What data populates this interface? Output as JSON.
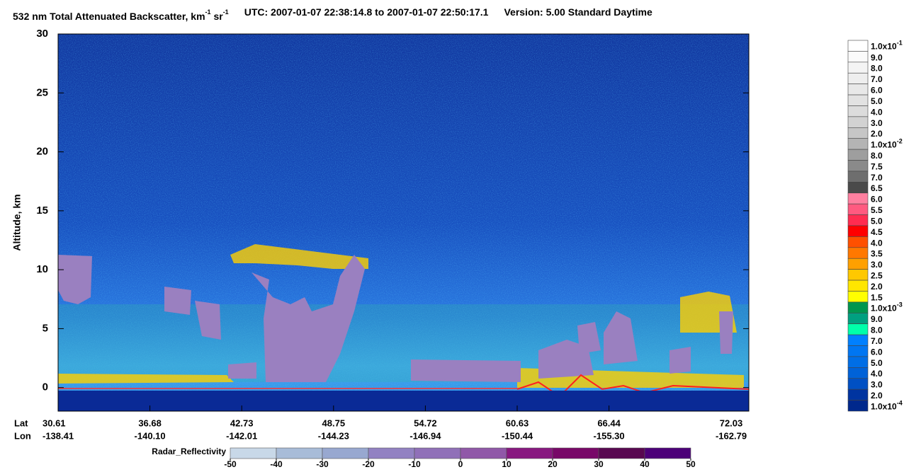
{
  "chart_data": {
    "type": "curtain",
    "title_parts": [
      "532 nm Total Attenuated Backscatter, km",
      "-1",
      " sr",
      "-1",
      "UTC:  2007-01-07 22:38:14.8  to  2007-01-07 22:50:17.1",
      "Version: 5.00  Standard  Daytime"
    ],
    "ylabel": "Altitude, km",
    "ylim": [
      -2,
      30
    ],
    "yticks": [
      0,
      5,
      10,
      15,
      20,
      25,
      30
    ],
    "x_row_labels": [
      "Lat",
      "Lon"
    ],
    "x_labels": [
      {
        "lat": "30.61",
        "lon": "-138.41"
      },
      {
        "lat": "36.68",
        "lon": "-140.10"
      },
      {
        "lat": "42.73",
        "lon": "-142.01"
      },
      {
        "lat": "48.75",
        "lon": "-144.23"
      },
      {
        "lat": "54.72",
        "lon": "-146.94"
      },
      {
        "lat": "60.63",
        "lon": "-150.44"
      },
      {
        "lat": "66.44",
        "lon": "-155.30"
      },
      {
        "lat": "72.03",
        "lon": "-162.79"
      }
    ],
    "colorbar": {
      "labels": [
        {
          "base": "1.0x10",
          "exp": "-1"
        },
        "9.0",
        "8.0",
        "7.0",
        "6.0",
        "5.0",
        "4.0",
        "3.0",
        "2.0",
        {
          "base": "1.0x10",
          "exp": "-2"
        },
        "8.0",
        "7.5",
        "7.0",
        "6.5",
        "6.0",
        "5.5",
        "5.0",
        "4.5",
        "4.0",
        "3.5",
        "3.0",
        "2.5",
        "2.0",
        "1.5",
        {
          "base": "1.0x10",
          "exp": "-3"
        },
        "9.0",
        "8.0",
        "7.0",
        "6.0",
        "5.0",
        "4.0",
        "3.0",
        "2.0",
        {
          "base": "1.0x10",
          "exp": "-4"
        }
      ],
      "colors": [
        "#ffffff",
        "#fafafa",
        "#f4f4f4",
        "#eeeeee",
        "#e8e8e8",
        "#e2e2e2",
        "#dcdcdc",
        "#d2d2d2",
        "#c6c6c6",
        "#b4b4b4",
        "#9e9e9e",
        "#8a8a8a",
        "#6e6e6e",
        "#4a4a4a",
        "#ff80a0",
        "#ff5a80",
        "#ff2c50",
        "#ff0000",
        "#ff5000",
        "#ff7800",
        "#ffa000",
        "#ffc800",
        "#ffe600",
        "#ffff00",
        "#00964e",
        "#00a080",
        "#00ffaa",
        "#0080ff",
        "#0076f2",
        "#006ee6",
        "#0062d8",
        "#0050c4",
        "#0034a0",
        "#00288c"
      ]
    },
    "radar": {
      "label": "Radar_Reflectivity",
      "lim": [
        -50,
        50
      ],
      "ticks": [
        -50,
        -40,
        -30,
        -20,
        -10,
        0,
        10,
        20,
        30,
        40,
        50
      ],
      "colors": [
        "#c8d8e8",
        "#a8bcd8",
        "#98a8d0",
        "#9282c2",
        "#9070b8",
        "#9058a8",
        "#881880",
        "#780868",
        "#580850",
        "#4c0078"
      ]
    }
  }
}
